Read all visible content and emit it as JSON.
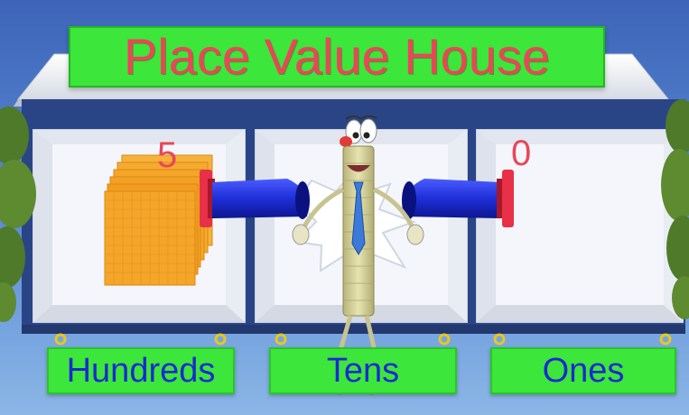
{
  "title": "Place Value House",
  "columns": [
    {
      "label": "Hundreds",
      "digit": "5"
    },
    {
      "label": "Tens",
      "digit": ""
    },
    {
      "label": "Ones",
      "digit": "0"
    }
  ],
  "colors": {
    "sign_green": "#3de63a",
    "title_text": "#e8475a",
    "label_text": "#1a2ad0",
    "house_navy": "#2a4585",
    "sky": "#4d7cc8",
    "block_orange": "#f5a623",
    "arm_blue": "#1f2fd8",
    "clamp_red": "#e83048"
  }
}
